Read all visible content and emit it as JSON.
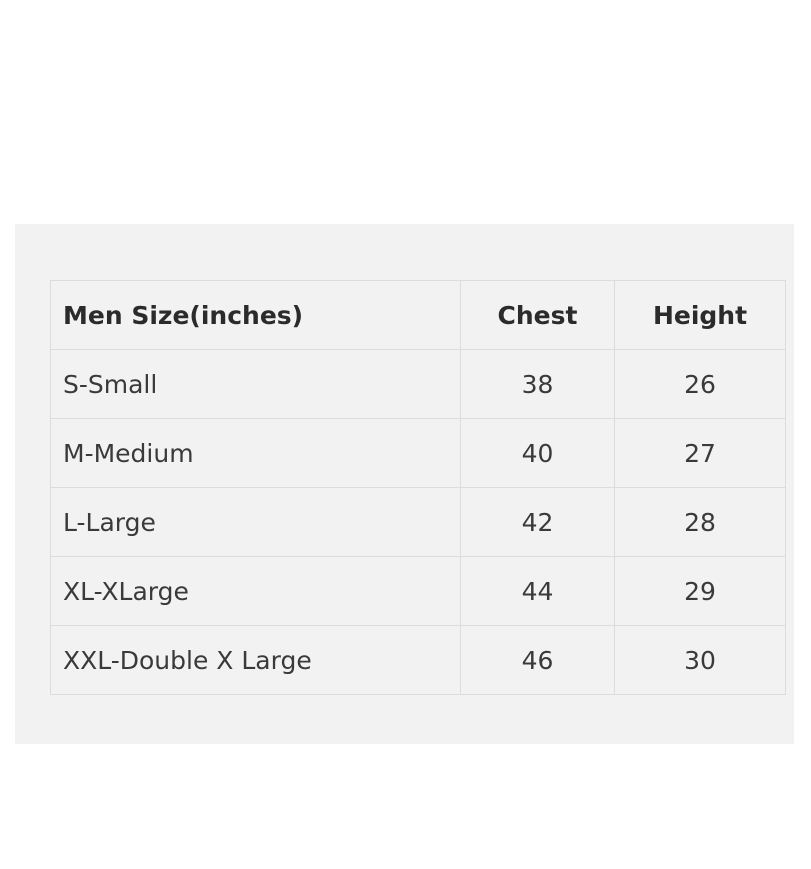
{
  "size_chart": {
    "headers": {
      "name": "Men Size(inches)",
      "chest": "Chest",
      "height": "Height"
    },
    "rows": [
      {
        "name": "S-Small",
        "chest": "38",
        "height": "26"
      },
      {
        "name": "M-Medium",
        "chest": "40",
        "height": "27"
      },
      {
        "name": "L-Large",
        "chest": "42",
        "height": "28"
      },
      {
        "name": "XL-XLarge",
        "chest": "44",
        "height": "29"
      },
      {
        "name": "XXL-Double X Large",
        "chest": "46",
        "height": "30"
      }
    ]
  },
  "colors": {
    "panel_background": "#f2f2f2",
    "border": "#dcdcdc",
    "text": "#333333"
  }
}
